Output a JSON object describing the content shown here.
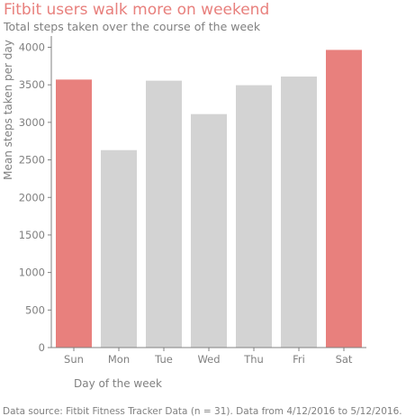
{
  "chart_data": {
    "type": "bar",
    "title": "Fitbit users walk more on weekend",
    "subtitle": "Total steps taken over the course of the week",
    "xlabel": "Day of the week",
    "ylabel": "Mean steps taken per day",
    "categories": [
      "Sun",
      "Mon",
      "Tue",
      "Wed",
      "Thu",
      "Fri",
      "Sat"
    ],
    "values": [
      3570,
      2630,
      3555,
      3110,
      3495,
      3610,
      3965
    ],
    "ylim": [
      0,
      4150
    ],
    "yticks": [
      0,
      500,
      1000,
      1500,
      2000,
      2500,
      3000,
      3500,
      4000
    ],
    "highlighted": [
      "Sun",
      "Sat"
    ],
    "grid": false,
    "source": "Data source: Fitbit Fitness Tracker Data (n = 31). Data from 4/12/2016 to 5/12/2016.",
    "colors": {
      "title": "#e8807d",
      "highlight_bar": "#e8807d",
      "default_bar": "#d3d3d3",
      "text": "#808080",
      "axis": "#808080"
    }
  }
}
